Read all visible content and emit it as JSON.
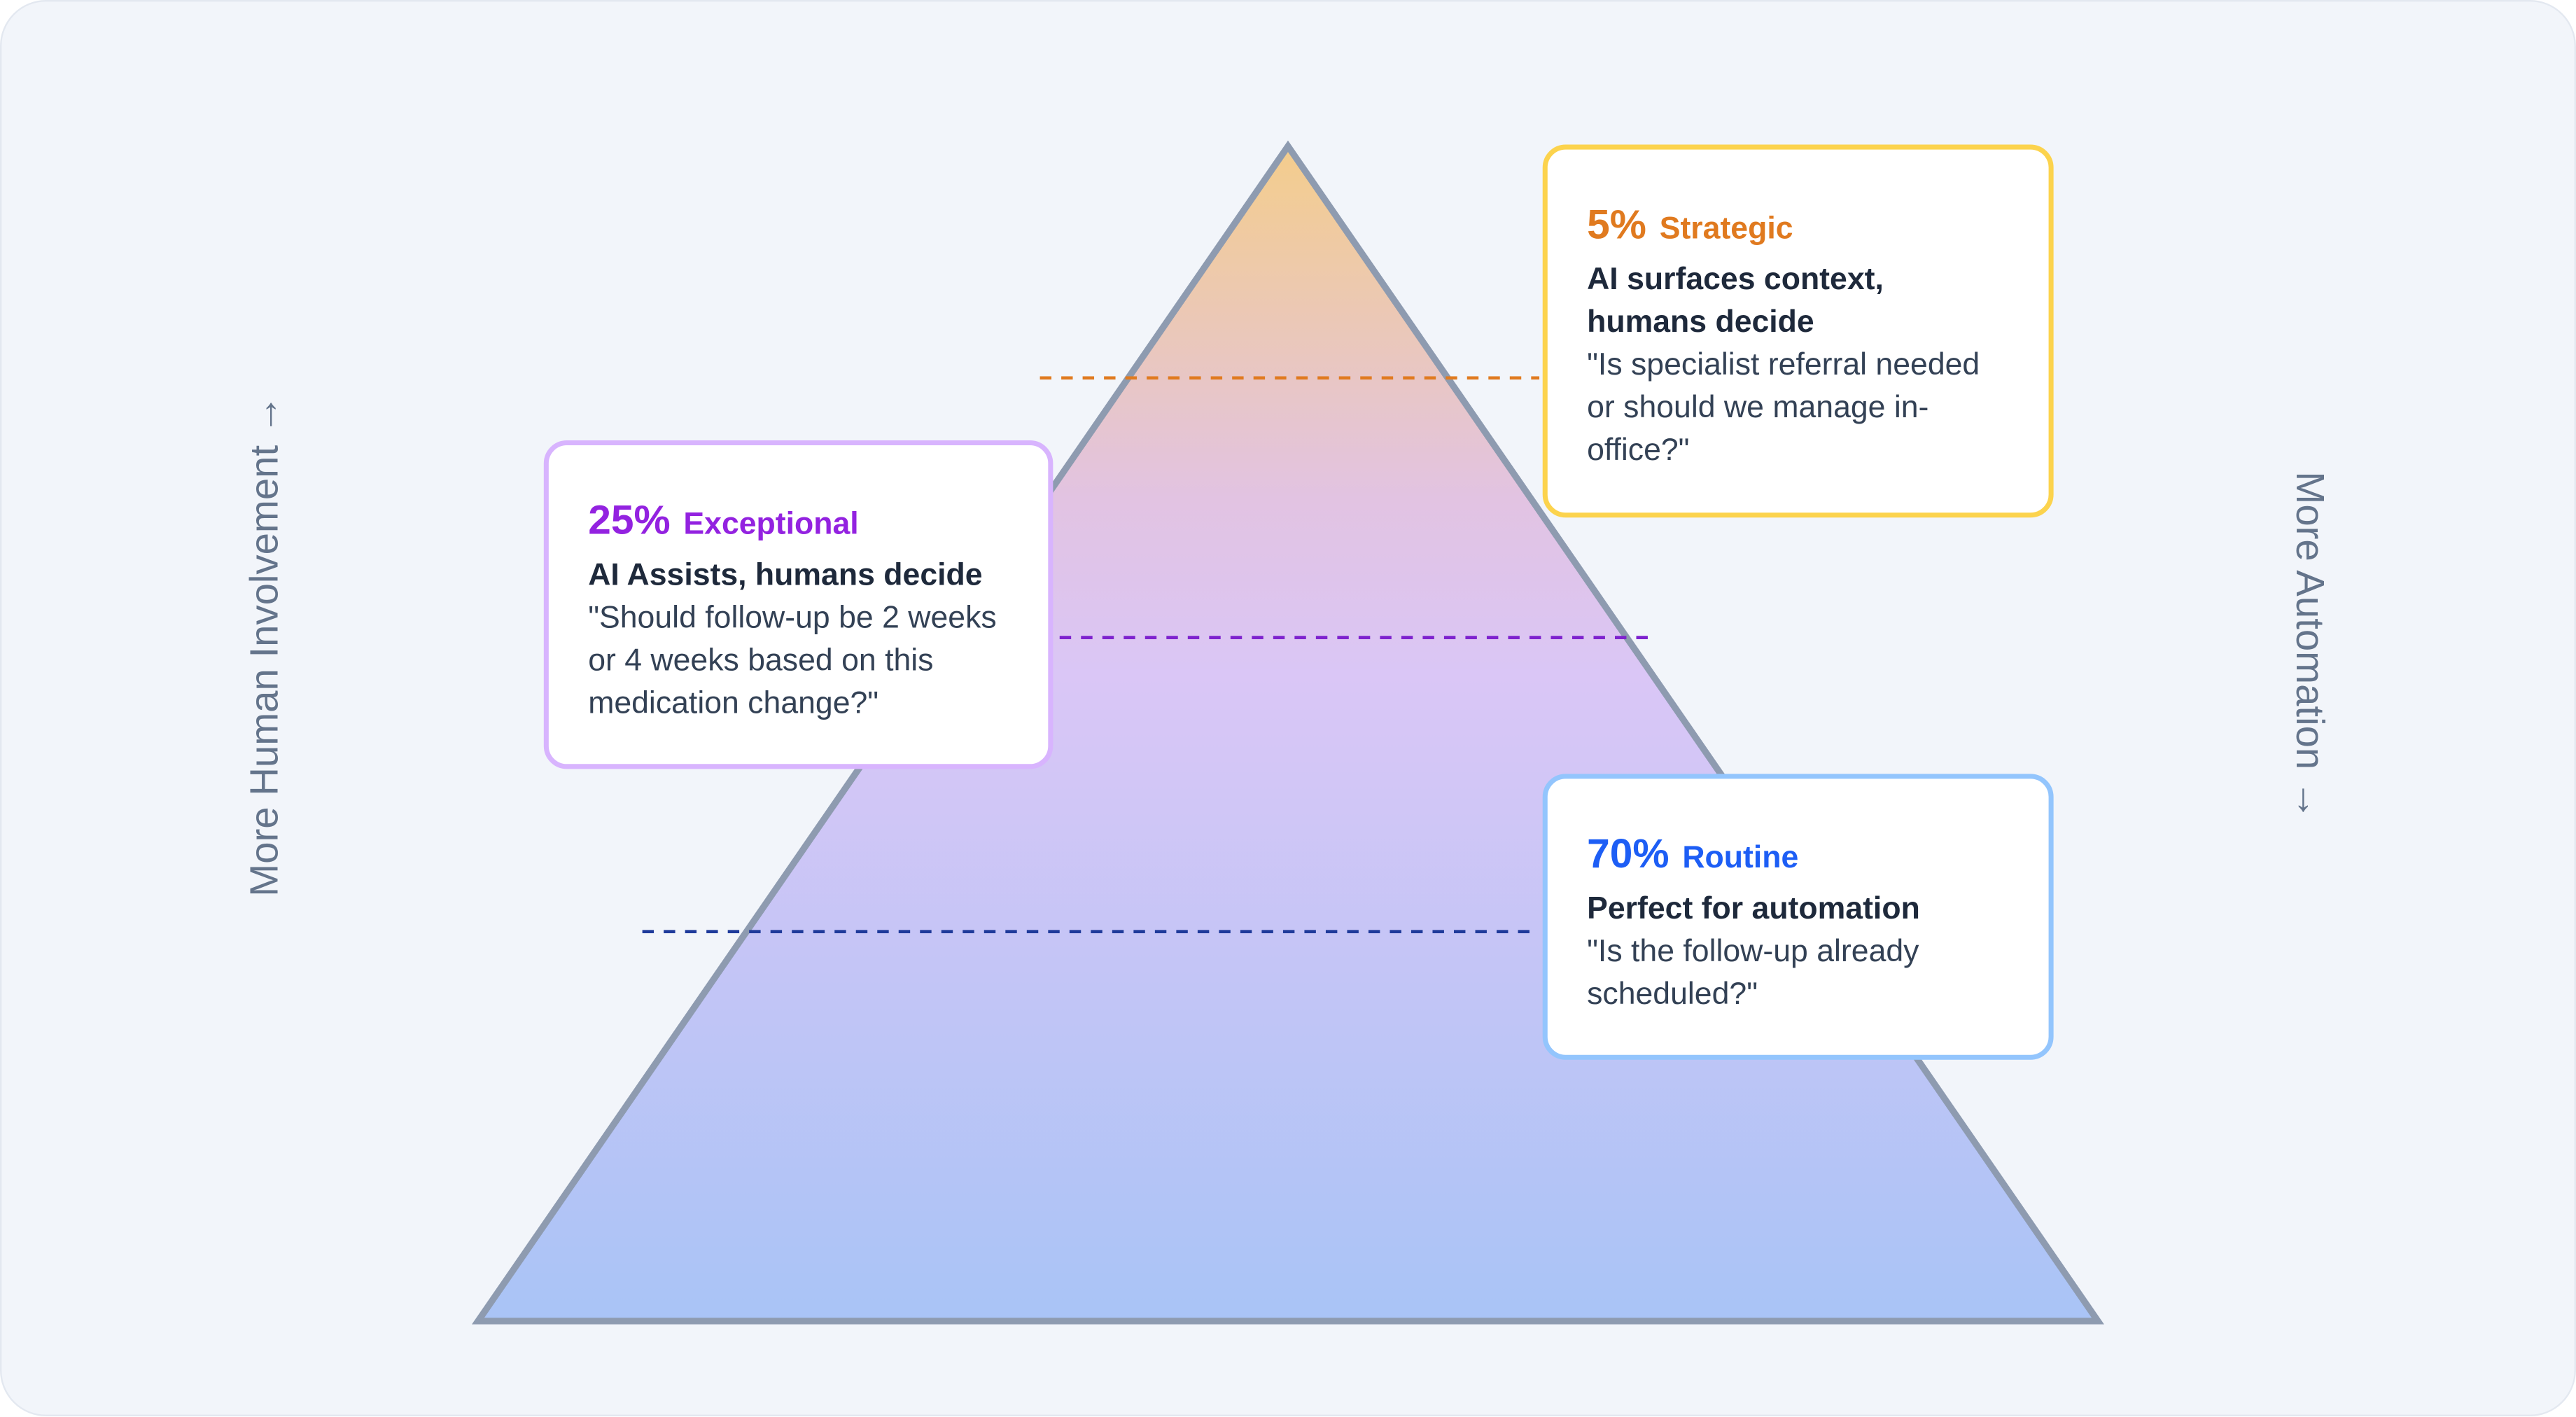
{
  "axis_labels": {
    "left": "More Human Involvement →",
    "right": "More Automation →"
  },
  "colors": {
    "strategic": "#e07a1f",
    "exceptional": "#9322e0",
    "routine": "#1d5ef5",
    "strategic_border": "#fcd34d",
    "exceptional_border": "#d8b4fe",
    "routine_border": "#93c5fd",
    "pyramid_outline": "#8e9bb0"
  },
  "tiers": [
    {
      "percent": "5%",
      "category": "Strategic",
      "title": "AI surfaces context, humans decide",
      "quote": "\"Is specialist referral needed or should we manage in-office?\""
    },
    {
      "percent": "25%",
      "category": "Exceptional",
      "title": "AI Assists, humans decide",
      "quote": "\"Should follow-up be 2 weeks or 4 weeks based on this medication change?\""
    },
    {
      "percent": "70%",
      "category": "Routine",
      "title": "Perfect for automation",
      "quote": "\"Is the follow-up already scheduled?\""
    }
  ]
}
